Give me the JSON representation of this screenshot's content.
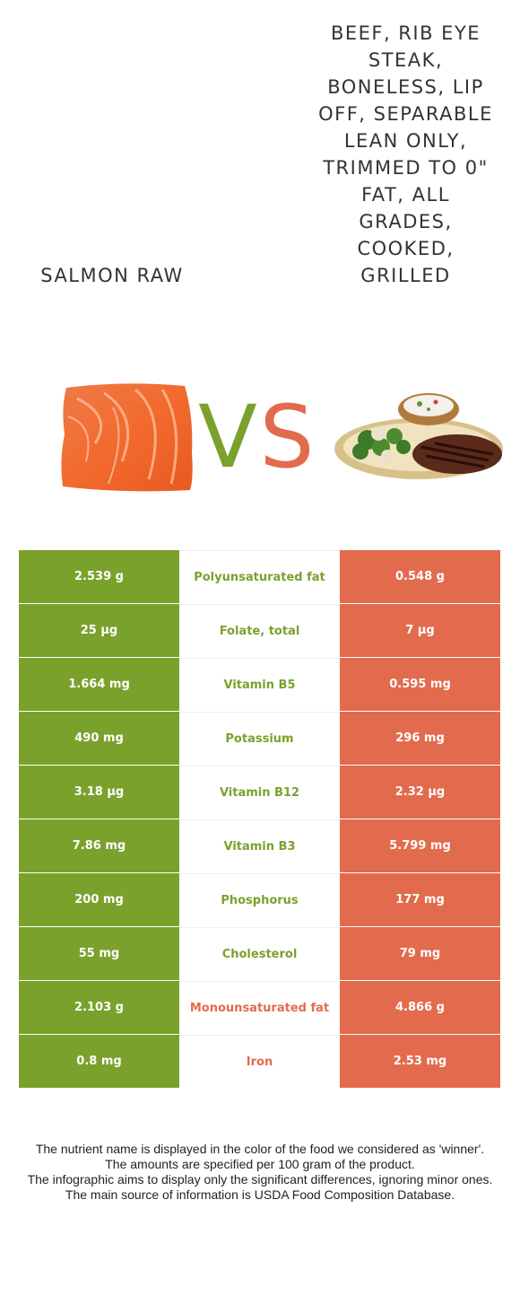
{
  "foods": {
    "left": {
      "name": "Salmon raw",
      "color": "#7ba12d",
      "image": "salmon-fillet-photo"
    },
    "right": {
      "name": "Beef, rib eye steak, boneless, lip off, separable lean only, trimmed to 0\" fat, all grades, cooked, grilled",
      "color": "#e26b4d",
      "image": "grilled-steak-plate-photo"
    }
  },
  "vs": {
    "v": "V",
    "s": "S"
  },
  "rows": [
    {
      "left": "2.539 g",
      "nutrient": "Polyunsaturated fat",
      "right": "0.548 g",
      "winner": "left"
    },
    {
      "left": "25 µg",
      "nutrient": "Folate, total",
      "right": "7 µg",
      "winner": "left"
    },
    {
      "left": "1.664 mg",
      "nutrient": "Vitamin B5",
      "right": "0.595 mg",
      "winner": "left"
    },
    {
      "left": "490 mg",
      "nutrient": "Potassium",
      "right": "296 mg",
      "winner": "left"
    },
    {
      "left": "3.18 µg",
      "nutrient": "Vitamin B12",
      "right": "2.32 µg",
      "winner": "left"
    },
    {
      "left": "7.86 mg",
      "nutrient": "Vitamin B3",
      "right": "5.799 mg",
      "winner": "left"
    },
    {
      "left": "200 mg",
      "nutrient": "Phosphorus",
      "right": "177 mg",
      "winner": "left"
    },
    {
      "left": "55 mg",
      "nutrient": "Cholesterol",
      "right": "79 mg",
      "winner": "left"
    },
    {
      "left": "2.103 g",
      "nutrient": "Monounsaturated fat",
      "right": "4.866 g",
      "winner": "right"
    },
    {
      "left": "0.8 mg",
      "nutrient": "Iron",
      "right": "2.53 mg",
      "winner": "right"
    }
  ],
  "footer": {
    "line1": "The nutrient name is displayed in the color of the food we considered as 'winner'.",
    "line2": "The amounts are specified per 100 gram of the product.",
    "line3": "The infographic aims to display only the significant differences, ignoring minor ones.",
    "line4": "The main source of information is USDA Food Composition Database."
  }
}
